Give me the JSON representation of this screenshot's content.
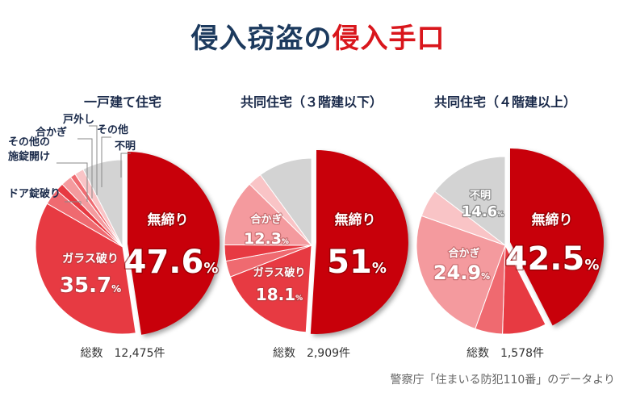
{
  "title_part1": "侵入窃盗の",
  "title_part2": "侵入手口",
  "source": "警察庁「住まいる防犯110番」のデータより",
  "colors": {
    "title_dark": "#1c3a5e",
    "title_accent": "#d9161c",
    "main_red": "#c8000a",
    "slice_2": "#e73a42",
    "slice_3": "#ef6a70",
    "slice_4": "#f49a9e",
    "slice_5": "#f9c4c6",
    "unknown": "#d3d3d3"
  },
  "chart_data": [
    {
      "type": "pie",
      "title": "一戸建て住宅",
      "total_label": "総数　12,475件",
      "slices": [
        {
          "label": "無締り",
          "value": 47.6,
          "value_text": "47.6"
        },
        {
          "label": "ガラス破り",
          "value": 35.7,
          "value_text": "35.7"
        },
        {
          "label": "ドア錠破り",
          "value": 3.0
        },
        {
          "label": "その他の施錠開け",
          "value": 1.5
        },
        {
          "label": "合かぎ",
          "value": 2.0
        },
        {
          "label": "戸外し",
          "value": 1.0
        },
        {
          "label": "その他",
          "value": 1.7
        },
        {
          "label": "不明",
          "value": 7.5
        }
      ]
    },
    {
      "type": "pie",
      "title": "共同住宅（３階建以下）",
      "total_label": "総数　2,909件",
      "slices": [
        {
          "label": "無締り",
          "value": 51,
          "value_text": "51"
        },
        {
          "label": "ガラス破り",
          "value": 18.1,
          "value_text": "18.1"
        },
        {
          "label": "",
          "value": 3.0
        },
        {
          "label": "",
          "value": 3.0
        },
        {
          "label": "合かぎ",
          "value": 12.3,
          "value_text": "12.3"
        },
        {
          "label": "",
          "value": 2.6
        },
        {
          "label": "",
          "value": 10.0
        }
      ]
    },
    {
      "type": "pie",
      "title": "共同住宅（４階建以上）",
      "total_label": "総数　1,578件",
      "slices": [
        {
          "label": "無締り",
          "value": 42.5,
          "value_text": "42.5"
        },
        {
          "label": "",
          "value": 8.0
        },
        {
          "label": "",
          "value": 5.0
        },
        {
          "label": "合かぎ",
          "value": 24.9,
          "value_text": "24.9"
        },
        {
          "label": "",
          "value": 5.0
        },
        {
          "label": "不明",
          "value": 14.6,
          "value_text": "14.6"
        }
      ]
    }
  ]
}
